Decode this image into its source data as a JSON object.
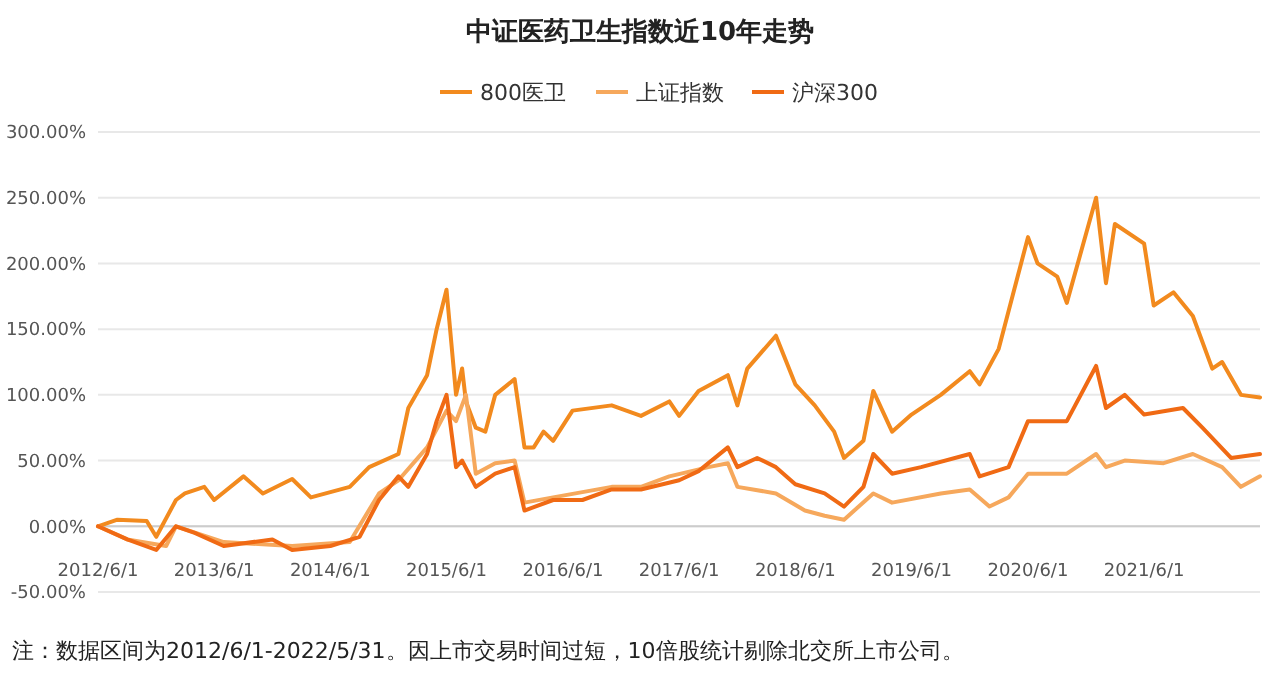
{
  "chart_data": {
    "type": "line",
    "title": "中证医药卫生指数近10年走势",
    "legend": "top",
    "grid": "y",
    "marker": "none",
    "line_style": "solid",
    "xlim": [
      "2012-06-01",
      "2022-05-31"
    ],
    "xticks": [
      {
        "value": "2012-06-01",
        "label": "2012/6/1"
      },
      {
        "value": "2013-06-01",
        "label": "2013/6/1"
      },
      {
        "value": "2014-06-01",
        "label": "2014/6/1"
      },
      {
        "value": "2015-06-01",
        "label": "2015/6/1"
      },
      {
        "value": "2016-06-01",
        "label": "2016/6/1"
      },
      {
        "value": "2017-06-01",
        "label": "2017/6/1"
      },
      {
        "value": "2018-06-01",
        "label": "2018/6/1"
      },
      {
        "value": "2019-06-01",
        "label": "2019/6/1"
      },
      {
        "value": "2020-06-01",
        "label": "2020/6/1"
      },
      {
        "value": "2021-06-01",
        "label": "2021/6/1"
      }
    ],
    "ylim": [
      -50,
      300
    ],
    "yticks": [
      {
        "value": -50,
        "label": "-50.00%"
      },
      {
        "value": 0,
        "label": "0.00%"
      },
      {
        "value": 50,
        "label": "50.00%"
      },
      {
        "value": 100,
        "label": "100.00%"
      },
      {
        "value": 150,
        "label": "150.00%"
      },
      {
        "value": 200,
        "label": "200.00%"
      },
      {
        "value": 250,
        "label": "250.00%"
      },
      {
        "value": 300,
        "label": "300.00%"
      }
    ],
    "annotations": [
      "注：数据区间为2012/6/1-2022/5/31。因上市交易时间过短，10倍股统计剔除北交所上市公司。"
    ],
    "series": [
      {
        "name": "800医卫",
        "color": "#f28a1e",
        "x": [
          "2012-06-01",
          "2012-08",
          "2012-11",
          "2012-12",
          "2013-02",
          "2013-03",
          "2013-05",
          "2013-06",
          "2013-09",
          "2013-11",
          "2014-02",
          "2014-04",
          "2014-08",
          "2014-10",
          "2015-01",
          "2015-02",
          "2015-04",
          "2015-05",
          "2015-06",
          "2015-07",
          "2015-07-20",
          "2015-08",
          "2015-09",
          "2015-10",
          "2015-11",
          "2016-01",
          "2016-02",
          "2016-03",
          "2016-04",
          "2016-05",
          "2016-07",
          "2016-11",
          "2017-02",
          "2017-05",
          "2017-06",
          "2017-08",
          "2017-11",
          "2017-12",
          "2018-01",
          "2018-04",
          "2018-06",
          "2018-08",
          "2018-10",
          "2018-11",
          "2019-01",
          "2019-02",
          "2019-04",
          "2019-06",
          "2019-09",
          "2019-12",
          "2020-01",
          "2020-03",
          "2020-06",
          "2020-07",
          "2020-09",
          "2020-10",
          "2021-01",
          "2021-02",
          "2021-03",
          "2021-06",
          "2021-07",
          "2021-09",
          "2021-11",
          "2022-01",
          "2022-02",
          "2022-04",
          "2022-05-31"
        ],
        "values": [
          0,
          5,
          4,
          -8,
          20,
          25,
          30,
          20,
          38,
          25,
          36,
          22,
          30,
          45,
          55,
          90,
          115,
          150,
          180,
          100,
          120,
          95,
          75,
          72,
          100,
          112,
          60,
          60,
          72,
          65,
          88,
          92,
          84,
          95,
          84,
          103,
          115,
          92,
          120,
          145,
          108,
          92,
          72,
          52,
          65,
          103,
          72,
          85,
          100,
          118,
          108,
          135,
          220,
          200,
          190,
          170,
          250,
          185,
          230,
          215,
          168,
          178,
          160,
          120,
          125,
          100,
          98
        ]
      },
      {
        "name": "上证指数",
        "color": "#f6a85c",
        "x": [
          "2012-06-01",
          "2012-09",
          "2013-01",
          "2013-02",
          "2013-07",
          "2014-02",
          "2014-08",
          "2014-11",
          "2015-01",
          "2015-04",
          "2015-06",
          "2015-07",
          "2015-08",
          "2015-09",
          "2015-11",
          "2016-01",
          "2016-02",
          "2016-05",
          "2016-11",
          "2017-02",
          "2017-05",
          "2017-09",
          "2017-11",
          "2017-12",
          "2018-04",
          "2018-07",
          "2018-09",
          "2018-11",
          "2019-02",
          "2019-04",
          "2019-09",
          "2019-12",
          "2020-02",
          "2020-04",
          "2020-06",
          "2020-10",
          "2021-01",
          "2021-02",
          "2021-04",
          "2021-08",
          "2021-11",
          "2022-02",
          "2022-04",
          "2022-05-31"
        ],
        "values": [
          0,
          -10,
          -15,
          0,
          -12,
          -15,
          -12,
          25,
          35,
          60,
          88,
          80,
          100,
          40,
          48,
          50,
          18,
          22,
          30,
          30,
          38,
          45,
          48,
          30,
          25,
          12,
          8,
          5,
          25,
          18,
          25,
          28,
          15,
          22,
          40,
          40,
          55,
          45,
          50,
          48,
          55,
          45,
          30,
          38
        ]
      },
      {
        "name": "沪深300",
        "color": "#f06a14",
        "x": [
          "2012-06-01",
          "2012-09",
          "2012-12",
          "2013-02",
          "2013-04",
          "2013-07",
          "2013-12",
          "2014-02",
          "2014-06",
          "2014-09",
          "2014-11",
          "2015-01",
          "2015-02",
          "2015-04",
          "2015-05",
          "2015-06",
          "2015-07",
          "2015-07-20",
          "2015-09",
          "2015-11",
          "2016-01",
          "2016-02",
          "2016-05",
          "2016-08",
          "2016-11",
          "2017-02",
          "2017-06",
          "2017-08",
          "2017-11",
          "2017-12",
          "2018-02",
          "2018-04",
          "2018-06",
          "2018-09",
          "2018-11",
          "2019-01",
          "2019-02",
          "2019-04",
          "2019-07",
          "2019-12",
          "2020-01",
          "2020-04",
          "2020-06",
          "2020-10",
          "2021-01",
          "2021-02",
          "2021-04",
          "2021-06",
          "2021-10",
          "2021-12",
          "2022-03",
          "2022-05-31"
        ],
        "values": [
          0,
          -10,
          -18,
          0,
          -5,
          -15,
          -10,
          -18,
          -15,
          -8,
          20,
          38,
          30,
          55,
          80,
          100,
          45,
          50,
          30,
          40,
          45,
          12,
          20,
          20,
          28,
          28,
          35,
          42,
          60,
          45,
          52,
          45,
          32,
          25,
          15,
          30,
          55,
          40,
          45,
          55,
          38,
          45,
          80,
          80,
          122,
          90,
          100,
          85,
          90,
          75,
          52,
          55
        ]
      }
    ]
  }
}
